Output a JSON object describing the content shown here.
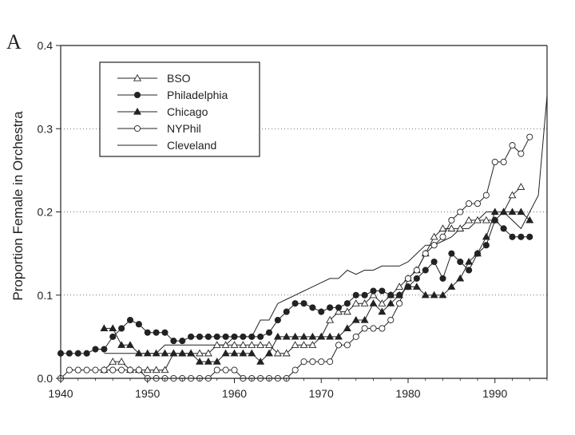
{
  "panel_label": "A",
  "chart_data": {
    "type": "line",
    "title": "",
    "xlabel": "",
    "ylabel": "Proportion Female in Orchestra",
    "xlim": [
      1940,
      1996
    ],
    "ylim": [
      0,
      0.4
    ],
    "x_ticks": [
      1940,
      1950,
      1960,
      1970,
      1980,
      1990
    ],
    "x_tick_labels": [
      "1940",
      "1950",
      "1960",
      "1970",
      "1980",
      "1990"
    ],
    "y_ticks": [
      0,
      0.1,
      0.2,
      0.3,
      0.4
    ],
    "y_tick_labels": [
      "0.0",
      "0.1",
      "0.2",
      "0.3",
      "0.4"
    ],
    "gridlines": "horizontal dotted at 0.1, 0.2, 0.3",
    "legend_position": "top-left",
    "series": [
      {
        "name": "BSO",
        "marker": "open-triangle",
        "x": [
          1945,
          1946,
          1947,
          1948,
          1949,
          1950,
          1951,
          1952,
          1953,
          1954,
          1955,
          1956,
          1957,
          1958,
          1959,
          1960,
          1961,
          1962,
          1963,
          1964,
          1965,
          1966,
          1967,
          1968,
          1969,
          1970,
          1971,
          1972,
          1973,
          1974,
          1975,
          1976,
          1977,
          1978,
          1979,
          1980,
          1981,
          1982,
          1983,
          1984,
          1985,
          1986,
          1987,
          1988,
          1989,
          1990,
          1991,
          1992,
          1993
        ],
        "y": [
          0.01,
          0.02,
          0.02,
          0.01,
          0.01,
          0.01,
          0.01,
          0.01,
          0.03,
          0.03,
          0.03,
          0.03,
          0.03,
          0.04,
          0.04,
          0.04,
          0.04,
          0.04,
          0.04,
          0.04,
          0.03,
          0.03,
          0.04,
          0.04,
          0.04,
          0.05,
          0.07,
          0.08,
          0.08,
          0.09,
          0.09,
          0.1,
          0.09,
          0.1,
          0.11,
          0.12,
          0.13,
          0.15,
          0.17,
          0.18,
          0.18,
          0.18,
          0.19,
          0.19,
          0.19,
          0.19,
          0.2,
          0.22,
          0.23
        ]
      },
      {
        "name": "Philadelphia",
        "marker": "filled-circle",
        "x": [
          1940,
          1941,
          1942,
          1943,
          1944,
          1945,
          1946,
          1947,
          1948,
          1949,
          1950,
          1951,
          1952,
          1953,
          1954,
          1955,
          1956,
          1957,
          1958,
          1959,
          1960,
          1961,
          1962,
          1963,
          1964,
          1965,
          1966,
          1967,
          1968,
          1969,
          1970,
          1971,
          1972,
          1973,
          1974,
          1975,
          1976,
          1977,
          1978,
          1979,
          1980,
          1981,
          1982,
          1983,
          1984,
          1985,
          1986,
          1987,
          1988,
          1989,
          1990,
          1991,
          1992,
          1993,
          1994
        ],
        "y": [
          0.03,
          0.03,
          0.03,
          0.03,
          0.035,
          0.035,
          0.05,
          0.06,
          0.07,
          0.065,
          0.055,
          0.055,
          0.055,
          0.045,
          0.045,
          0.05,
          0.05,
          0.05,
          0.05,
          0.05,
          0.05,
          0.05,
          0.05,
          0.05,
          0.055,
          0.07,
          0.08,
          0.09,
          0.09,
          0.085,
          0.08,
          0.085,
          0.085,
          0.09,
          0.1,
          0.1,
          0.105,
          0.105,
          0.1,
          0.1,
          0.11,
          0.12,
          0.13,
          0.14,
          0.12,
          0.15,
          0.14,
          0.13,
          0.15,
          0.16,
          0.19,
          0.18,
          0.17,
          0.17,
          0.17
        ]
      },
      {
        "name": "Chicago",
        "marker": "filled-triangle",
        "x": [
          1945,
          1946,
          1947,
          1948,
          1949,
          1950,
          1951,
          1952,
          1953,
          1954,
          1955,
          1956,
          1957,
          1958,
          1959,
          1960,
          1961,
          1962,
          1963,
          1964,
          1965,
          1966,
          1967,
          1968,
          1969,
          1970,
          1971,
          1972,
          1973,
          1974,
          1975,
          1976,
          1977,
          1978,
          1979,
          1980,
          1981,
          1982,
          1983,
          1984,
          1985,
          1986,
          1987,
          1988,
          1989,
          1990,
          1991,
          1992,
          1993,
          1994
        ],
        "y": [
          0.06,
          0.06,
          0.04,
          0.04,
          0.03,
          0.03,
          0.03,
          0.03,
          0.03,
          0.03,
          0.03,
          0.02,
          0.02,
          0.02,
          0.03,
          0.03,
          0.03,
          0.03,
          0.02,
          0.03,
          0.05,
          0.05,
          0.05,
          0.05,
          0.05,
          0.05,
          0.05,
          0.05,
          0.06,
          0.07,
          0.07,
          0.09,
          0.08,
          0.09,
          0.1,
          0.11,
          0.11,
          0.1,
          0.1,
          0.1,
          0.11,
          0.12,
          0.14,
          0.15,
          0.17,
          0.2,
          0.2,
          0.2,
          0.2,
          0.19
        ]
      },
      {
        "name": "NYPhil",
        "marker": "open-circle",
        "x": [
          1940,
          1941,
          1942,
          1943,
          1944,
          1945,
          1946,
          1947,
          1948,
          1949,
          1950,
          1951,
          1952,
          1953,
          1954,
          1955,
          1956,
          1957,
          1958,
          1959,
          1960,
          1961,
          1962,
          1963,
          1964,
          1965,
          1966,
          1967,
          1968,
          1969,
          1970,
          1971,
          1972,
          1973,
          1974,
          1975,
          1976,
          1977,
          1978,
          1979,
          1980,
          1981,
          1982,
          1983,
          1984,
          1985,
          1986,
          1987,
          1988,
          1989,
          1990,
          1991,
          1992,
          1993,
          1994
        ],
        "y": [
          0.0,
          0.01,
          0.01,
          0.01,
          0.01,
          0.01,
          0.01,
          0.01,
          0.01,
          0.01,
          0.0,
          0.0,
          0.0,
          0.0,
          0.0,
          0.0,
          0.0,
          0.0,
          0.01,
          0.01,
          0.01,
          0.0,
          0.0,
          0.0,
          0.0,
          0.0,
          0.0,
          0.01,
          0.02,
          0.02,
          0.02,
          0.02,
          0.04,
          0.04,
          0.05,
          0.06,
          0.06,
          0.06,
          0.07,
          0.09,
          0.12,
          0.13,
          0.15,
          0.16,
          0.17,
          0.19,
          0.2,
          0.21,
          0.21,
          0.22,
          0.26,
          0.26,
          0.28,
          0.27,
          0.29
        ]
      },
      {
        "name": "Cleveland",
        "marker": "none",
        "x": [
          1945,
          1946,
          1947,
          1948,
          1949,
          1950,
          1951,
          1952,
          1953,
          1954,
          1955,
          1956,
          1957,
          1958,
          1959,
          1960,
          1961,
          1962,
          1963,
          1964,
          1965,
          1966,
          1967,
          1968,
          1969,
          1970,
          1971,
          1972,
          1973,
          1974,
          1975,
          1976,
          1977,
          1978,
          1979,
          1980,
          1981,
          1982,
          1983,
          1984,
          1985,
          1986,
          1987,
          1988,
          1989,
          1990,
          1991,
          1992,
          1993,
          1994,
          1995,
          1996
        ],
        "y": [
          0.03,
          0.03,
          0.03,
          0.03,
          0.03,
          0.03,
          0.03,
          0.04,
          0.04,
          0.04,
          0.04,
          0.04,
          0.04,
          0.04,
          0.04,
          0.05,
          0.05,
          0.05,
          0.07,
          0.07,
          0.09,
          0.095,
          0.1,
          0.105,
          0.11,
          0.115,
          0.12,
          0.12,
          0.13,
          0.125,
          0.13,
          0.13,
          0.135,
          0.135,
          0.135,
          0.14,
          0.15,
          0.16,
          0.16,
          0.165,
          0.17,
          0.18,
          0.18,
          0.19,
          0.2,
          0.2,
          0.2,
          0.19,
          0.18,
          0.2,
          0.22,
          0.34
        ]
      }
    ]
  }
}
